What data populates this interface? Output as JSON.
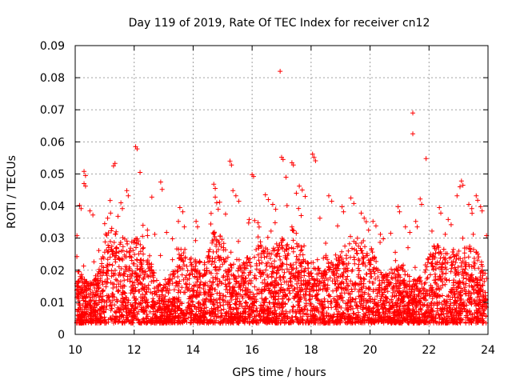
{
  "chart_data": {
    "type": "scatter",
    "title": "Day 119 of 2019, Rate Of TEC Index for receiver cn12",
    "xlabel": "GPS time / hours",
    "ylabel": "ROTI / TECUs",
    "xlim": [
      10,
      24
    ],
    "ylim": [
      0,
      0.09
    ],
    "x_ticks": [
      "10",
      "12",
      "14",
      "16",
      "18",
      "20",
      "22",
      "24"
    ],
    "y_ticks": [
      "0",
      "0.01",
      "0.02",
      "0.03",
      "0.04",
      "0.05",
      "0.06",
      "0.07",
      "0.08",
      "0.09"
    ],
    "grid": true,
    "marker": "+",
    "marker_color": "#ff0000",
    "series": [
      {
        "name": "cn12",
        "points": [
          [
            16.95,
            0.082
          ],
          [
            21.45,
            0.069
          ],
          [
            21.45,
            0.0625
          ],
          [
            21.9,
            0.0548
          ],
          [
            12.05,
            0.0585
          ],
          [
            12.1,
            0.0578
          ],
          [
            11.35,
            0.0533
          ],
          [
            11.3,
            0.0525
          ],
          [
            10.3,
            0.0508
          ],
          [
            10.35,
            0.0495
          ],
          [
            10.3,
            0.047
          ],
          [
            10.35,
            0.0462
          ],
          [
            15.25,
            0.054
          ],
          [
            15.3,
            0.0528
          ],
          [
            16.0,
            0.0498
          ],
          [
            16.05,
            0.0492
          ],
          [
            17.0,
            0.0552
          ],
          [
            17.05,
            0.0545
          ],
          [
            17.35,
            0.0535
          ],
          [
            17.4,
            0.0528
          ],
          [
            18.05,
            0.0562
          ],
          [
            18.1,
            0.0552
          ],
          [
            18.15,
            0.0541
          ],
          [
            17.6,
            0.0462
          ],
          [
            17.7,
            0.045
          ],
          [
            17.5,
            0.044
          ],
          [
            17.8,
            0.043
          ],
          [
            17.15,
            0.049
          ],
          [
            14.75,
            0.0428
          ],
          [
            14.8,
            0.041
          ],
          [
            14.85,
            0.039
          ],
          [
            15.35,
            0.0448
          ],
          [
            15.45,
            0.0432
          ],
          [
            15.55,
            0.0415
          ],
          [
            14.7,
            0.0468
          ],
          [
            14.75,
            0.0455
          ],
          [
            12.9,
            0.0475
          ],
          [
            12.95,
            0.0452
          ],
          [
            12.6,
            0.0428
          ],
          [
            12.2,
            0.0505
          ],
          [
            11.75,
            0.0448
          ],
          [
            11.8,
            0.0432
          ],
          [
            11.55,
            0.041
          ],
          [
            11.6,
            0.0392
          ],
          [
            10.5,
            0.0385
          ],
          [
            10.6,
            0.0372
          ],
          [
            10.15,
            0.0402
          ],
          [
            10.2,
            0.0392
          ],
          [
            13.55,
            0.0395
          ],
          [
            13.65,
            0.0382
          ],
          [
            13.5,
            0.0352
          ],
          [
            13.7,
            0.0335
          ],
          [
            14.1,
            0.0352
          ],
          [
            14.15,
            0.0335
          ],
          [
            16.45,
            0.0435
          ],
          [
            16.55,
            0.042
          ],
          [
            16.7,
            0.0405
          ],
          [
            16.8,
            0.039
          ],
          [
            18.6,
            0.0432
          ],
          [
            18.7,
            0.0415
          ],
          [
            19.05,
            0.0398
          ],
          [
            19.1,
            0.0382
          ],
          [
            19.35,
            0.0425
          ],
          [
            19.45,
            0.0408
          ],
          [
            19.7,
            0.0378
          ],
          [
            19.8,
            0.0362
          ],
          [
            20.1,
            0.0352
          ],
          [
            20.2,
            0.0338
          ],
          [
            20.35,
            0.0312
          ],
          [
            20.45,
            0.0298
          ],
          [
            20.95,
            0.0398
          ],
          [
            21.0,
            0.0382
          ],
          [
            21.55,
            0.0352
          ],
          [
            21.6,
            0.0335
          ],
          [
            21.7,
            0.0422
          ],
          [
            21.75,
            0.0405
          ],
          [
            22.35,
            0.0395
          ],
          [
            22.4,
            0.0378
          ],
          [
            22.65,
            0.0358
          ],
          [
            22.75,
            0.0342
          ],
          [
            23.1,
            0.0478
          ],
          [
            23.15,
            0.0465
          ],
          [
            23.05,
            0.046
          ],
          [
            22.95,
            0.0432
          ],
          [
            23.35,
            0.0405
          ],
          [
            23.45,
            0.0392
          ],
          [
            23.6,
            0.0432
          ],
          [
            23.65,
            0.0418
          ],
          [
            23.75,
            0.0398
          ],
          [
            23.8,
            0.0385
          ],
          [
            23.95,
            0.0308
          ],
          [
            23.5,
            0.0312
          ],
          [
            11.0,
            0.0345
          ],
          [
            11.1,
            0.0362
          ],
          [
            11.2,
            0.0378
          ],
          [
            11.45,
            0.0368
          ],
          [
            12.3,
            0.034
          ],
          [
            12.45,
            0.0325
          ],
          [
            12.7,
            0.0312
          ],
          [
            13.1,
            0.0318
          ],
          [
            13.3,
            0.0298
          ],
          [
            15.9,
            0.0358
          ],
          [
            16.2,
            0.0348
          ],
          [
            18.3,
            0.0362
          ],
          [
            18.9,
            0.0338
          ],
          [
            19.95,
            0.0325
          ],
          [
            20.7,
            0.0315
          ],
          [
            21.2,
            0.0335
          ],
          [
            21.35,
            0.0318
          ],
          [
            22.1,
            0.0322
          ],
          [
            22.55,
            0.0312
          ],
          [
            15.1,
            0.0375
          ]
        ]
      }
    ]
  }
}
